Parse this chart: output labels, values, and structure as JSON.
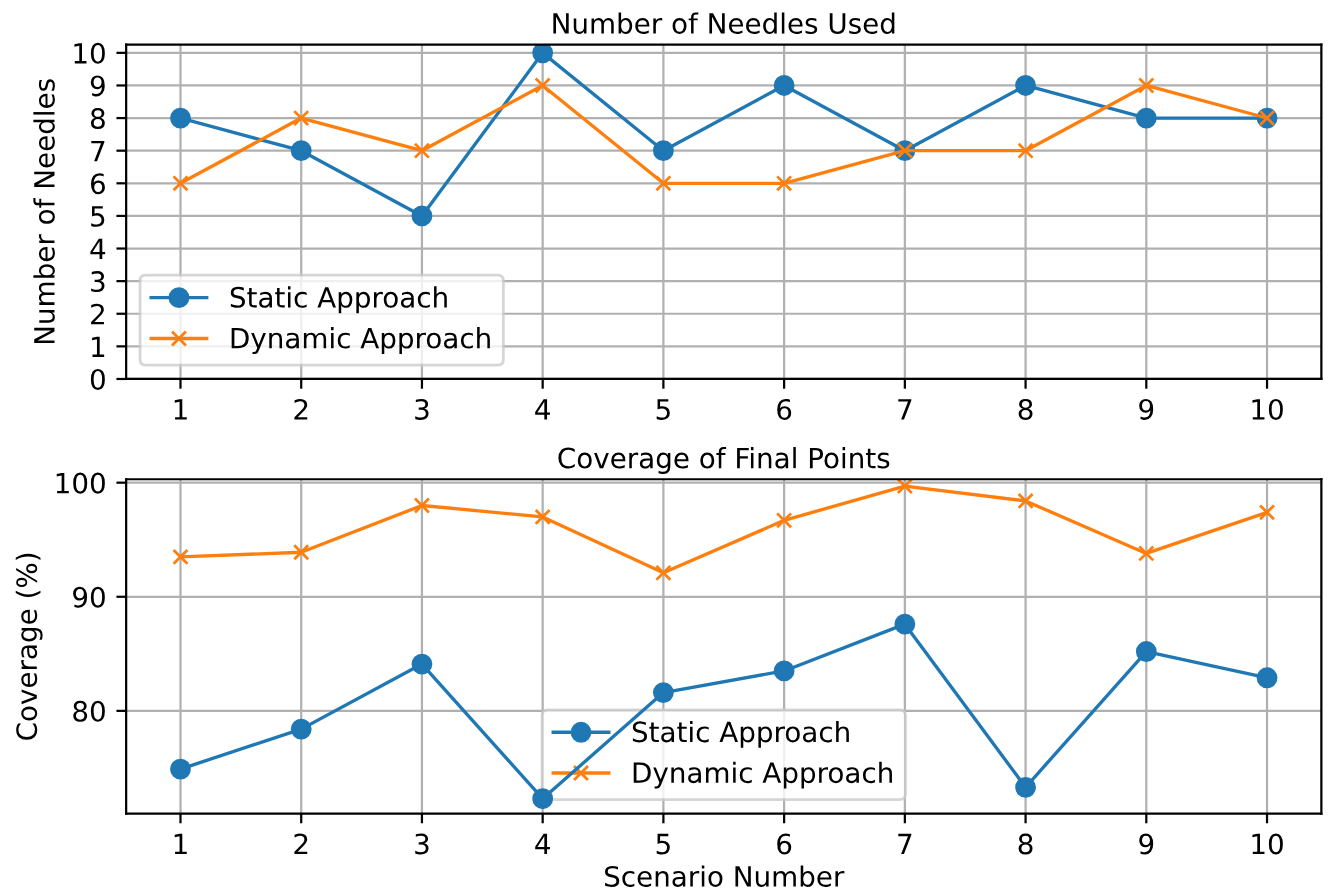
{
  "chart_data": [
    {
      "type": "line",
      "title": "Number of Needles Used",
      "ylabel": "Number of Needles",
      "x": [
        1,
        2,
        3,
        4,
        5,
        6,
        7,
        8,
        9,
        10
      ],
      "xlim": [
        0.55,
        10.45
      ],
      "xticks": [
        1,
        2,
        3,
        4,
        5,
        6,
        7,
        8,
        9,
        10
      ],
      "ylim": [
        0,
        10.25
      ],
      "yticks": [
        0,
        1,
        2,
        3,
        4,
        5,
        6,
        7,
        8,
        9,
        10
      ],
      "grid": true,
      "legend": "bottom left",
      "series": [
        {
          "name": "Static Approach",
          "color": "#1f77b4",
          "marker": "circle",
          "values": [
            8,
            7,
            5,
            10,
            7,
            9,
            7,
            9,
            8,
            8
          ]
        },
        {
          "name": "Dynamic Approach",
          "color": "#ff7f0e",
          "marker": "cross",
          "values": [
            6,
            8,
            7,
            9,
            6,
            6,
            7,
            7,
            9,
            8
          ]
        }
      ]
    },
    {
      "type": "line",
      "title": "Coverage of Final Points",
      "xlabel": "Scenario Number",
      "ylabel": "Coverage (%)",
      "x": [
        1,
        2,
        3,
        4,
        5,
        6,
        7,
        8,
        9,
        10
      ],
      "xlim": [
        0.55,
        10.45
      ],
      "xticks": [
        1,
        2,
        3,
        4,
        5,
        6,
        7,
        8,
        9,
        10
      ],
      "ylim": [
        71,
        100.3
      ],
      "yticks": [
        80,
        90,
        100
      ],
      "grid": true,
      "legend": "bottom",
      "series": [
        {
          "name": "Static Approach",
          "color": "#1f77b4",
          "marker": "circle",
          "values": [
            74.9,
            78.4,
            84.1,
            72.3,
            81.6,
            83.5,
            87.6,
            73.3,
            85.2,
            82.9
          ]
        },
        {
          "name": "Dynamic Approach",
          "color": "#ff7f0e",
          "marker": "cross",
          "values": [
            93.5,
            93.9,
            98.0,
            97.0,
            92.1,
            96.7,
            99.7,
            98.4,
            93.8,
            97.4
          ]
        }
      ]
    }
  ]
}
